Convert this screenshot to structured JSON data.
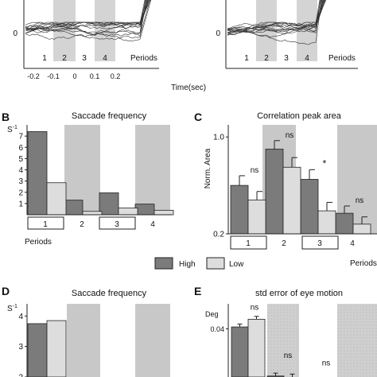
{
  "top": {
    "zero_label": "0",
    "period_numbers": [
      "1",
      "2",
      "3",
      "4"
    ],
    "periods_label": "Periods",
    "xticks": [
      "-0.2",
      "-0.1",
      "0",
      "0.1",
      "0.2"
    ],
    "xlabel": "Time(sec)"
  },
  "legend": {
    "items": [
      "High",
      "Low"
    ],
    "colors": [
      "#7b7b7b",
      "#dddddd"
    ]
  },
  "colors": {
    "high": "#7b7b7b",
    "low": "#dddddd",
    "shade": "#c8c8c8"
  },
  "chart_data": [
    {
      "panel": "B",
      "type": "bar",
      "title": "Saccade frequency",
      "ylabel": "S-1",
      "ylim": [
        0,
        8
      ],
      "yticks": [
        "1",
        "2",
        "3",
        "4",
        "5",
        "6",
        "7"
      ],
      "categories": [
        "1",
        "2",
        "3",
        "4"
      ],
      "xlabel": "Periods",
      "series": [
        {
          "name": "High",
          "values": [
            7.4,
            1.3,
            1.95,
            0.95
          ]
        },
        {
          "name": "Low",
          "values": [
            2.85,
            0.3,
            0.6,
            0.4
          ]
        }
      ]
    },
    {
      "panel": "C",
      "type": "bar",
      "title": "Correlation peak area",
      "ylabel": "Norm. Area",
      "ylim": [
        0.2,
        1.1
      ],
      "yticks": [
        "1.0",
        "0.2"
      ],
      "categories": [
        "1",
        "2",
        "3",
        "4"
      ],
      "xlabel": "Periods",
      "series": [
        {
          "name": "High",
          "values": [
            0.6,
            0.9,
            0.65,
            0.37
          ],
          "errors": [
            0.08,
            0.07,
            0.08,
            0.06
          ]
        },
        {
          "name": "Low",
          "values": [
            0.48,
            0.75,
            0.39,
            0.28
          ],
          "errors": [
            0.07,
            0.08,
            0.07,
            0.06
          ]
        }
      ],
      "annotations": [
        "ns",
        "ns",
        "*",
        "ns"
      ]
    },
    {
      "panel": "D",
      "type": "bar",
      "title": "Saccade frequency",
      "ylabel": "S-1",
      "ylim": [
        2,
        4.4
      ],
      "yticks": [
        "2",
        "3",
        "4"
      ],
      "series": [
        {
          "name": "High",
          "values": [
            3.75
          ]
        },
        {
          "name": "Low",
          "values": [
            3.85
          ]
        }
      ]
    },
    {
      "panel": "E",
      "type": "bar",
      "title": "std error of eye motion",
      "ylabel": "Deg",
      "ylim": [
        0.015,
        0.053
      ],
      "yticks": [
        "0.04"
      ],
      "series": [
        {
          "name": "High",
          "values": [
            0.041,
            0.0155
          ]
        },
        {
          "name": "Low",
          "values": [
            0.045,
            0.015
          ]
        }
      ],
      "annotations": [
        "ns",
        "ns",
        "ns"
      ]
    }
  ]
}
